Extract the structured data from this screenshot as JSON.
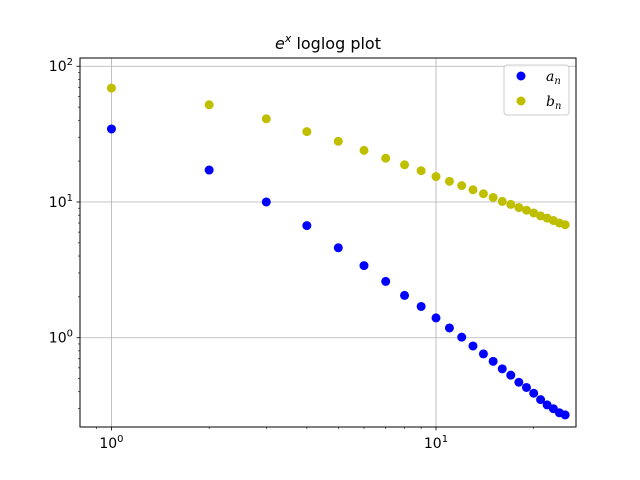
{
  "chart_data": {
    "type": "scatter",
    "title": {
      "base": "e",
      "superscript": "x",
      "suffix": " loglog plot"
    },
    "xlabel": "",
    "ylabel": "",
    "xscale": "log",
    "yscale": "log",
    "xlim": [
      0.8,
      27
    ],
    "ylim": [
      0.22,
      115
    ],
    "x_ticks": [
      {
        "value": 1,
        "base": "10",
        "exponent": "0"
      },
      {
        "value": 10,
        "base": "10",
        "exponent": "1"
      }
    ],
    "y_ticks": [
      {
        "value": 1,
        "base": "10",
        "exponent": "0"
      },
      {
        "value": 10,
        "base": "10",
        "exponent": "1"
      },
      {
        "value": 100,
        "base": "10",
        "exponent": "2"
      }
    ],
    "grid": true,
    "legend_position": "top-right",
    "series": [
      {
        "name_base": "a",
        "name_sub": "n",
        "color": "#0000ff",
        "x": [
          1,
          2,
          3,
          4,
          5,
          6,
          7,
          8,
          9,
          10,
          11,
          12,
          13,
          14,
          15,
          16,
          17,
          18,
          19,
          20,
          21,
          22,
          23,
          24,
          25
        ],
        "y": [
          34.5,
          17.2,
          10.0,
          6.7,
          4.6,
          3.4,
          2.6,
          2.05,
          1.7,
          1.4,
          1.18,
          1.01,
          0.87,
          0.76,
          0.67,
          0.59,
          0.53,
          0.47,
          0.43,
          0.39,
          0.35,
          0.32,
          0.3,
          0.28,
          0.27
        ]
      },
      {
        "name_base": "b",
        "name_sub": "n",
        "color": "#bfbf00",
        "x": [
          1,
          2,
          3,
          4,
          5,
          6,
          7,
          8,
          9,
          10,
          11,
          12,
          13,
          14,
          15,
          16,
          17,
          18,
          19,
          20,
          21,
          22,
          23,
          24,
          25
        ],
        "y": [
          69,
          52,
          41,
          33,
          28,
          24,
          21,
          18.8,
          17,
          15.4,
          14.2,
          13.2,
          12.3,
          11.5,
          10.8,
          10.1,
          9.6,
          9.1,
          8.7,
          8.3,
          7.9,
          7.6,
          7.3,
          7.0,
          6.8
        ]
      }
    ]
  }
}
